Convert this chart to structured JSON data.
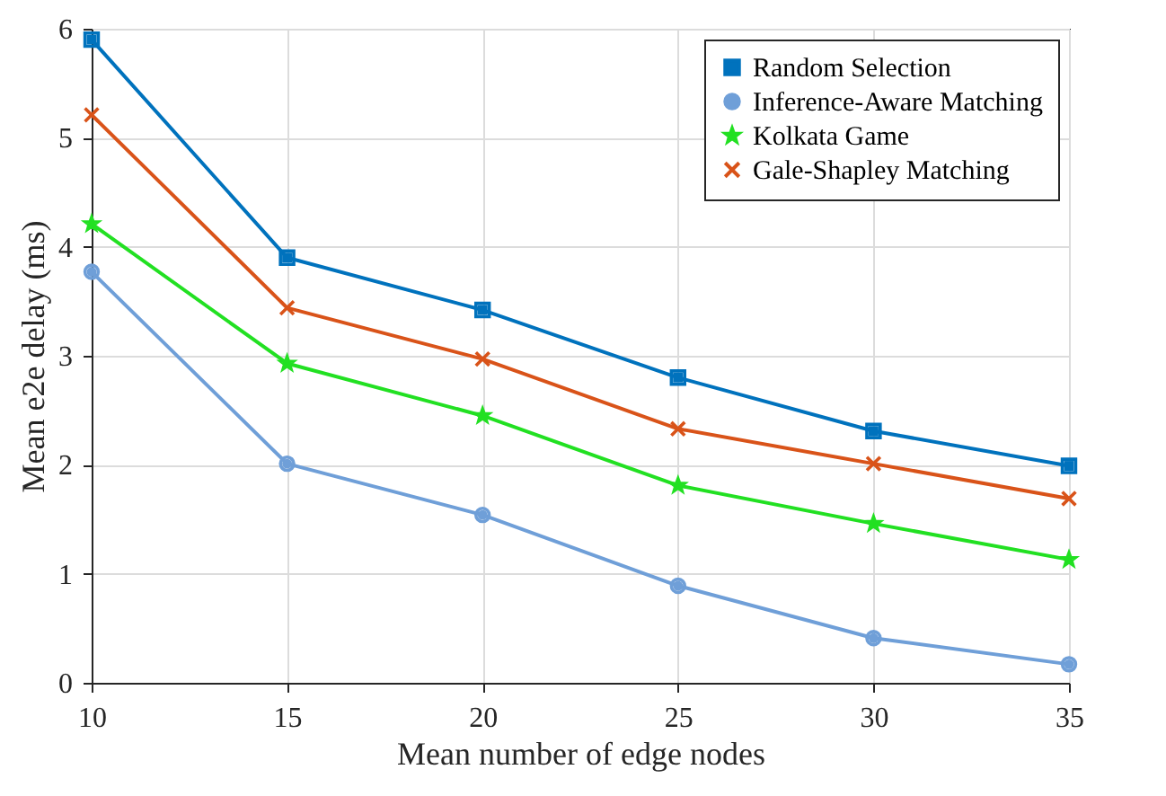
{
  "chart_data": {
    "type": "line",
    "xlabel": "Mean number of edge nodes",
    "ylabel": "Mean e2e delay (ms)",
    "x": [
      10,
      15,
      20,
      25,
      30,
      35
    ],
    "xlim": [
      10,
      35
    ],
    "xticks": [
      10,
      15,
      20,
      25,
      30,
      35
    ],
    "ylim": [
      0,
      6
    ],
    "yticks": [
      0,
      1,
      2,
      3,
      4,
      5,
      6
    ],
    "grid": true,
    "legend": "top right",
    "line_style": "solid",
    "series": [
      {
        "name": "Random Selection",
        "color": "#0072bd",
        "marker": "square",
        "values": [
          5.9,
          3.9,
          3.42,
          2.8,
          2.31,
          1.99
        ]
      },
      {
        "name": "Inference-Aware Matching",
        "color": "#6f9fd8",
        "marker": "circle",
        "values": [
          3.77,
          2.01,
          1.54,
          0.89,
          0.41,
          0.17
        ]
      },
      {
        "name": "Kolkata Game",
        "color": "#22e022",
        "marker": "star",
        "values": [
          4.21,
          2.93,
          2.45,
          1.81,
          1.46,
          1.13
        ]
      },
      {
        "name": "Gale-Shapley Matching",
        "color": "#d95319",
        "marker": "cross",
        "values": [
          5.21,
          3.44,
          2.97,
          2.33,
          2.01,
          1.69
        ]
      }
    ]
  }
}
